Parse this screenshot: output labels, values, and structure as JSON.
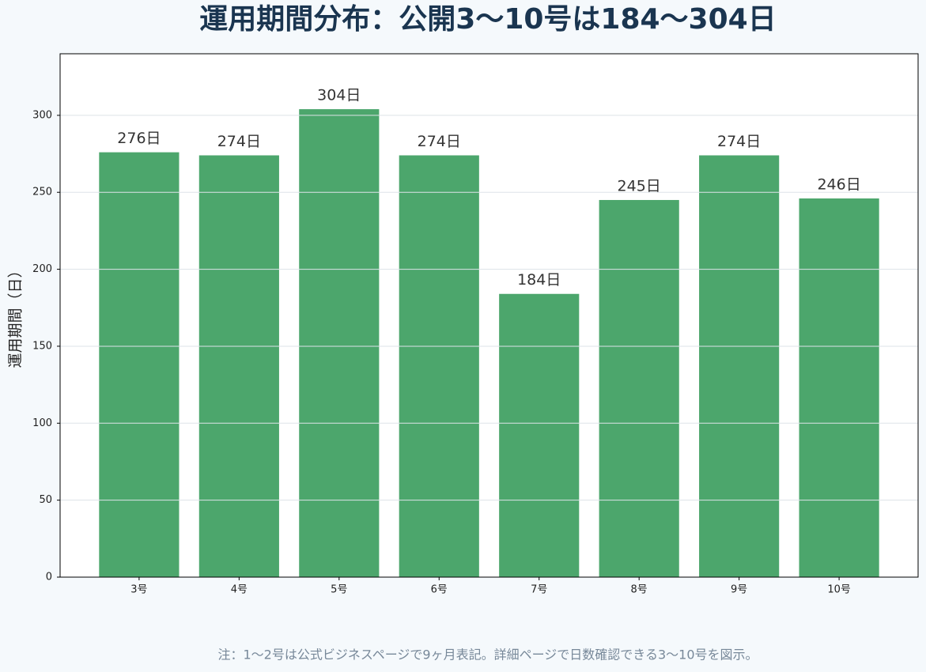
{
  "chart_data": {
    "type": "bar",
    "title": "運用期間分布：公開3〜10号は184〜304日",
    "ylabel": "運用期間（日）",
    "categories": [
      "3号",
      "4号",
      "5号",
      "6号",
      "7号",
      "8号",
      "9号",
      "10号"
    ],
    "values": [
      276,
      274,
      304,
      274,
      184,
      245,
      274,
      246
    ],
    "value_labels": [
      "276日",
      "274日",
      "304日",
      "274日",
      "184日",
      "245日",
      "274日",
      "246日"
    ],
    "color": "#4ca66c",
    "ylim": [
      0,
      340
    ],
    "yticks": [
      0,
      50,
      100,
      150,
      200,
      250,
      300
    ],
    "grid": true,
    "note": "注：1〜2号は公式ビジネスページで9ヶ月表記。詳細ページで日数確認できる3〜10号を図示。"
  }
}
